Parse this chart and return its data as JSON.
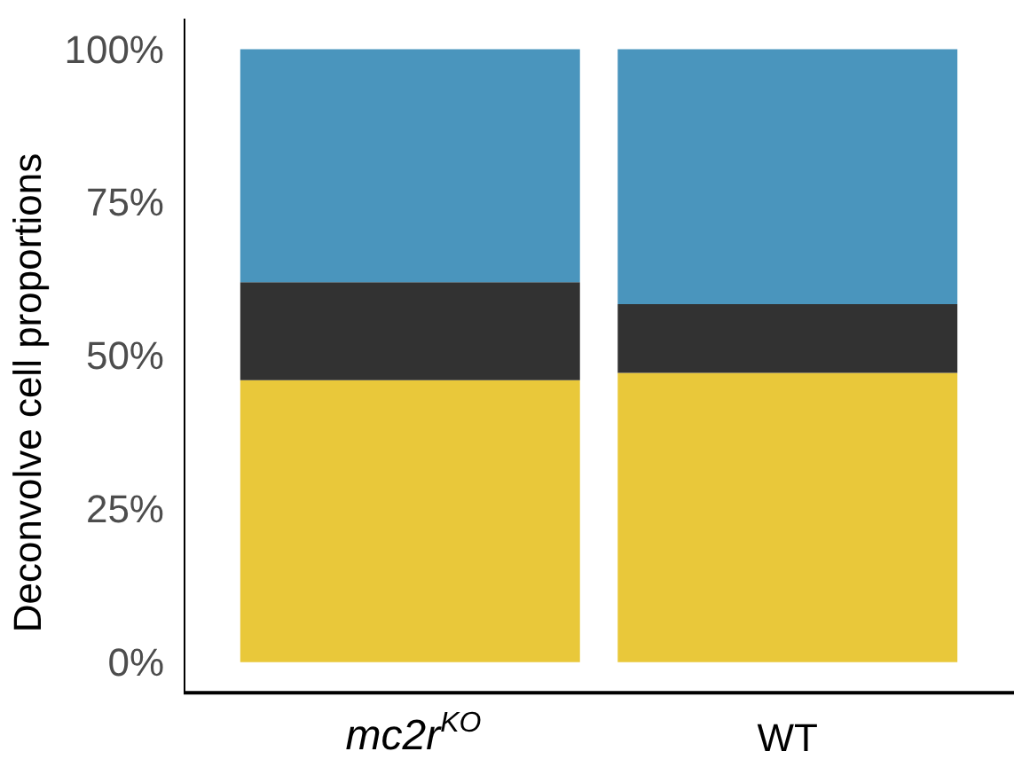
{
  "chart_data": {
    "type": "bar",
    "ylabel": "Deconvolve cell proportions",
    "categories": [
      "mc2r$^{KO}$",
      "WT"
    ],
    "stacked": true,
    "series": [
      {
        "color": "#e9c83a",
        "values": [
          46.0,
          47.2
        ]
      },
      {
        "color": "#323232",
        "values": [
          16.0,
          11.2
        ]
      },
      {
        "color": "#4a95bd",
        "values": [
          38.0,
          41.6
        ]
      }
    ],
    "ylim": [
      -5,
      105
    ],
    "yticks": [
      {
        "value": 0,
        "label": "0%"
      },
      {
        "value": 25,
        "label": "25%"
      },
      {
        "value": 50,
        "label": "50%"
      },
      {
        "value": 75,
        "label": "75%"
      },
      {
        "value": 100,
        "label": "100%"
      }
    ],
    "grid": false
  }
}
